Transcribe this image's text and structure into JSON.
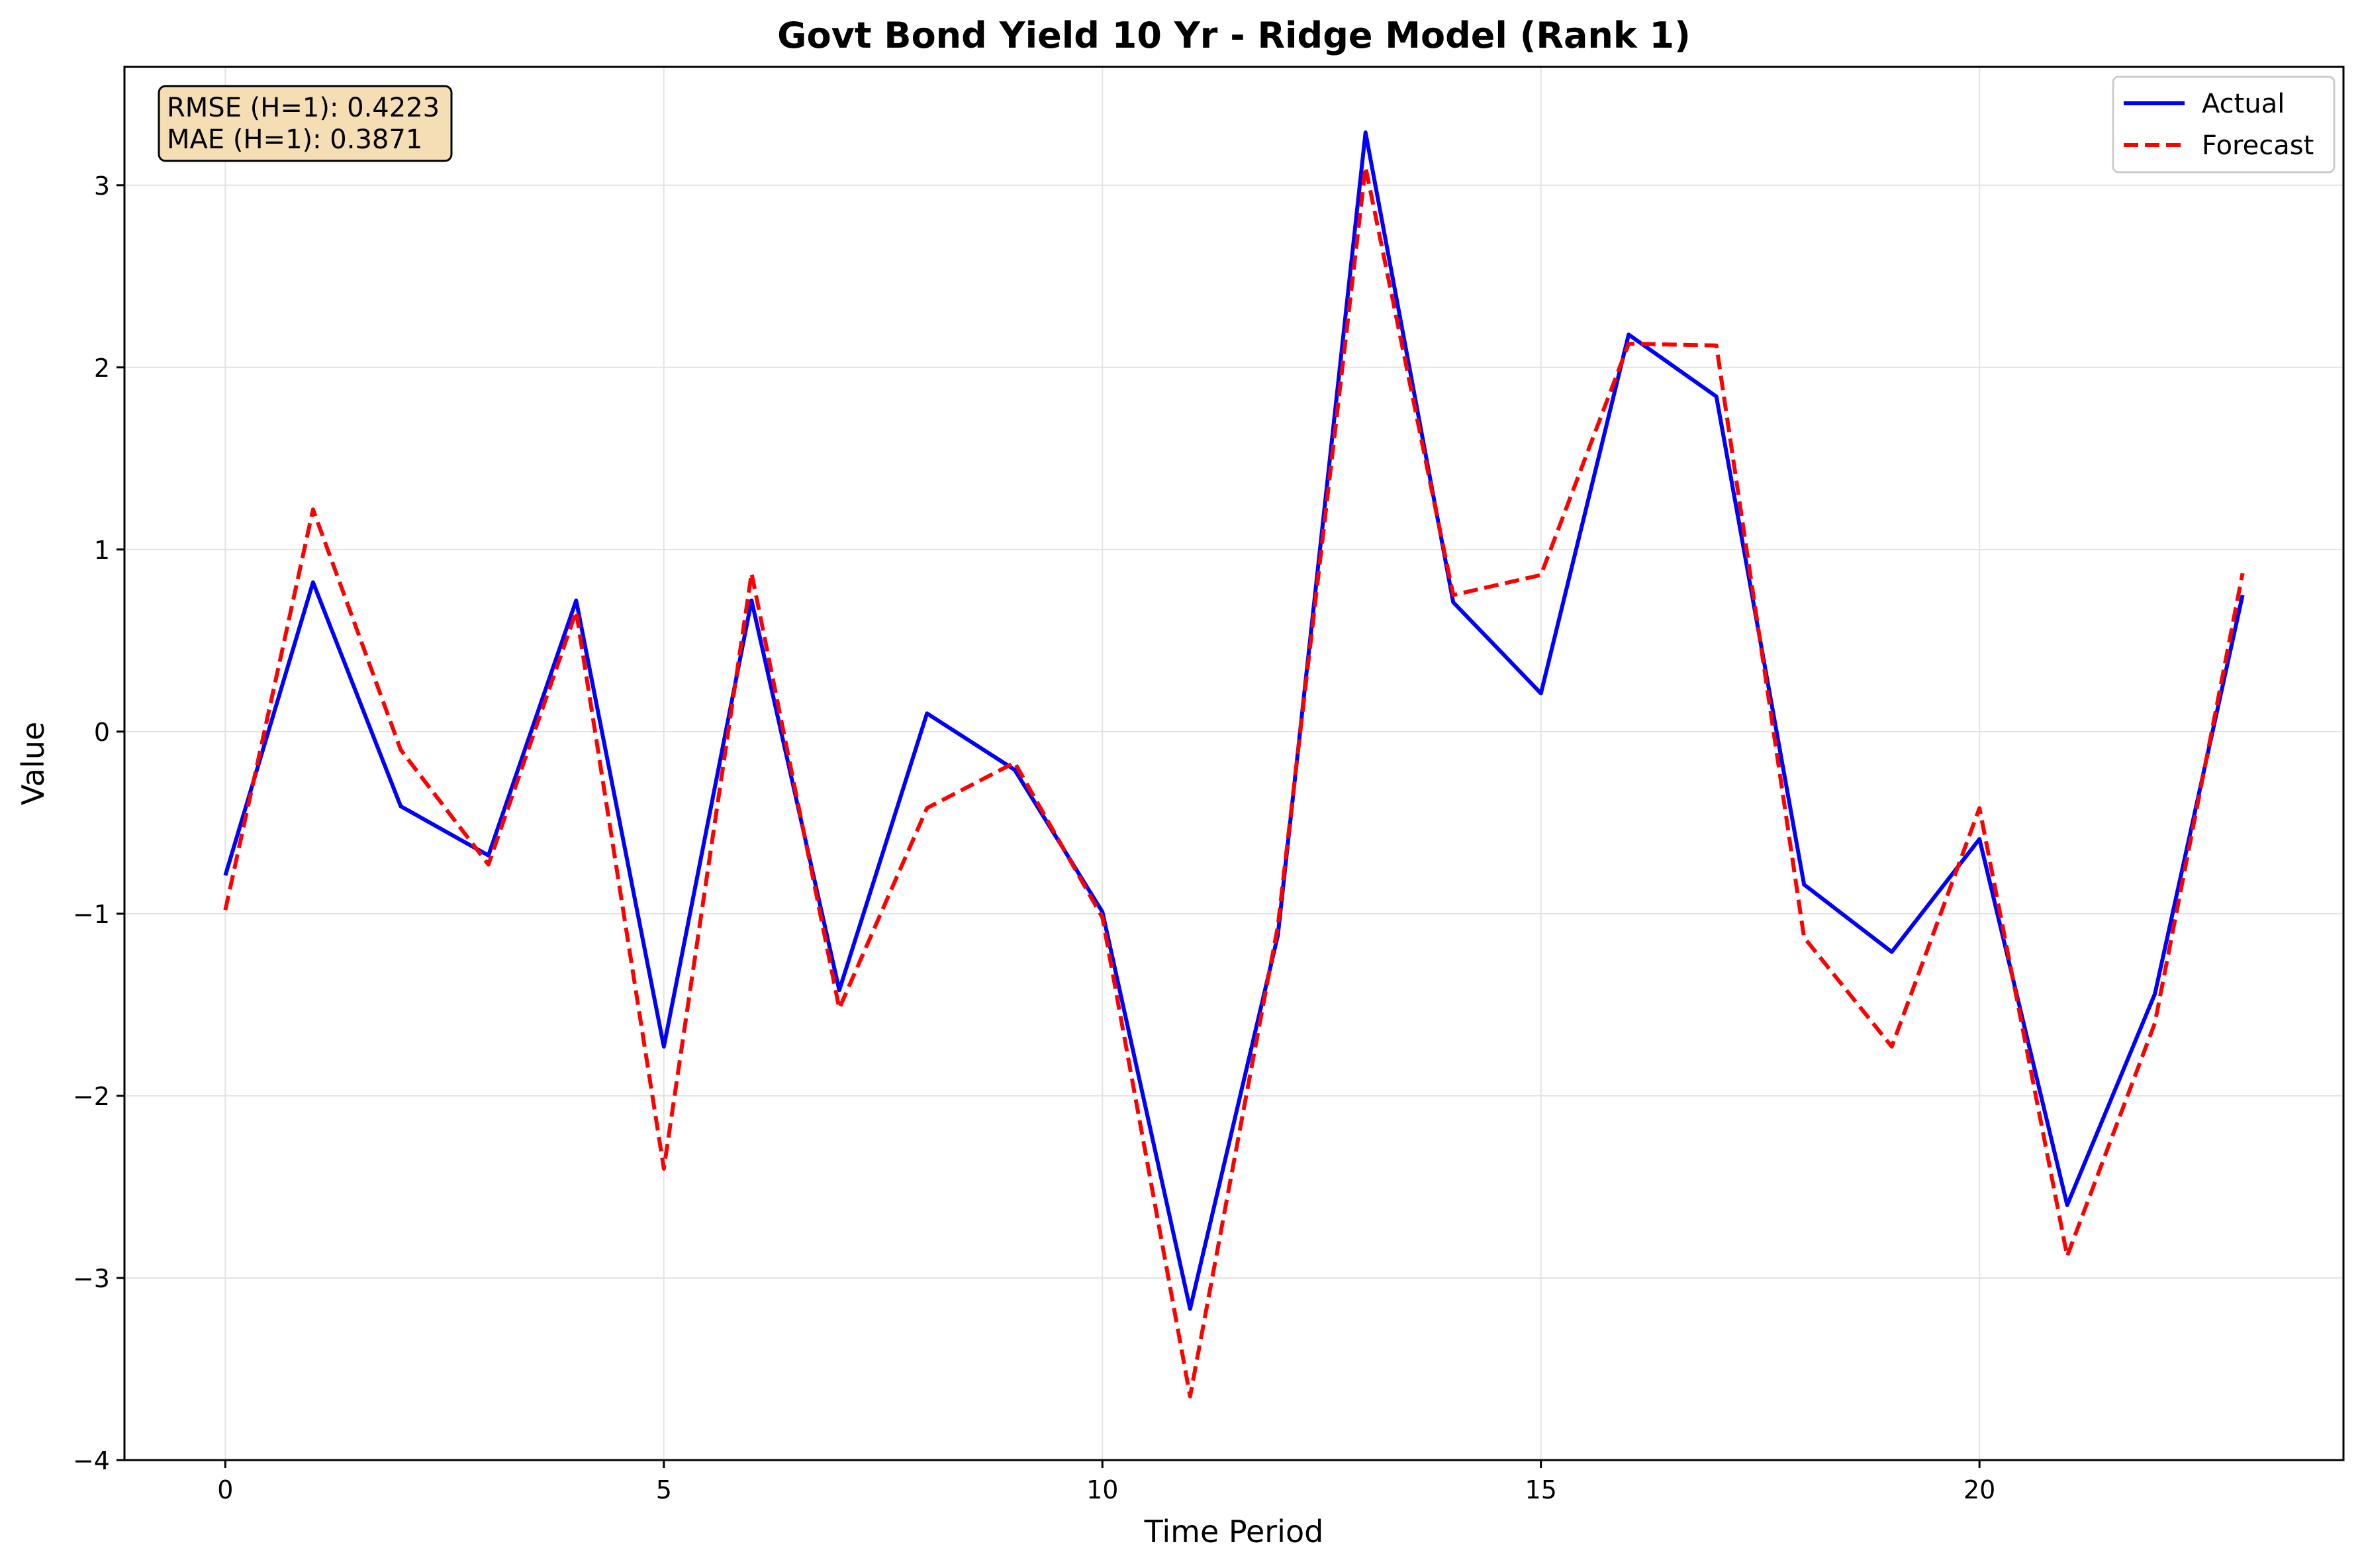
{
  "chart_data": {
    "type": "line",
    "title": "Govt Bond Yield 10 Yr - Ridge Model (Rank 1)",
    "xlabel": "Time Period",
    "ylabel": "Value",
    "xlim": [
      -1.15,
      24.15
    ],
    "ylim": [
      -4,
      3.65
    ],
    "x_ticks": [
      0,
      5,
      10,
      15,
      20
    ],
    "x_tick_labels": [
      "0",
      "5",
      "10",
      "15",
      "20"
    ],
    "y_ticks": [
      -4,
      -3,
      -2,
      -1,
      0,
      1,
      2,
      3
    ],
    "y_tick_labels": [
      "−4",
      "−3",
      "−2",
      "−1",
      "0",
      "1",
      "2",
      "3"
    ],
    "grid": true,
    "legend_position": "top-right",
    "x": [
      0,
      1,
      2,
      3,
      4,
      5,
      6,
      7,
      8,
      9,
      10,
      11,
      12,
      13,
      14,
      15,
      16,
      17,
      18,
      19,
      20,
      21,
      22,
      23
    ],
    "series": [
      {
        "name": "Actual",
        "color": "#0000ff",
        "style": "solid",
        "values": [
          -0.79,
          0.82,
          -0.41,
          -0.68,
          0.72,
          -1.73,
          0.72,
          -1.42,
          0.1,
          -0.21,
          -0.99,
          -3.17,
          -1.12,
          3.29,
          0.71,
          0.21,
          2.18,
          1.84,
          -0.84,
          -1.21,
          -0.59,
          -2.6,
          -1.44,
          0.75
        ]
      },
      {
        "name": "Forecast",
        "color": "#ff0000",
        "style": "dashed",
        "values": [
          -0.98,
          1.22,
          -0.1,
          -0.73,
          0.66,
          -2.4,
          0.87,
          -1.52,
          -0.42,
          -0.17,
          -1.02,
          -3.65,
          -1.07,
          3.1,
          0.75,
          0.86,
          2.13,
          2.12,
          -1.13,
          -1.73,
          -0.42,
          -2.88,
          -1.6,
          0.87
        ]
      }
    ],
    "annotation": {
      "lines": [
        "RMSE (H=1): 0.4223",
        "MAE (H=1): 0.3871"
      ],
      "background": "#f5deb3"
    }
  }
}
